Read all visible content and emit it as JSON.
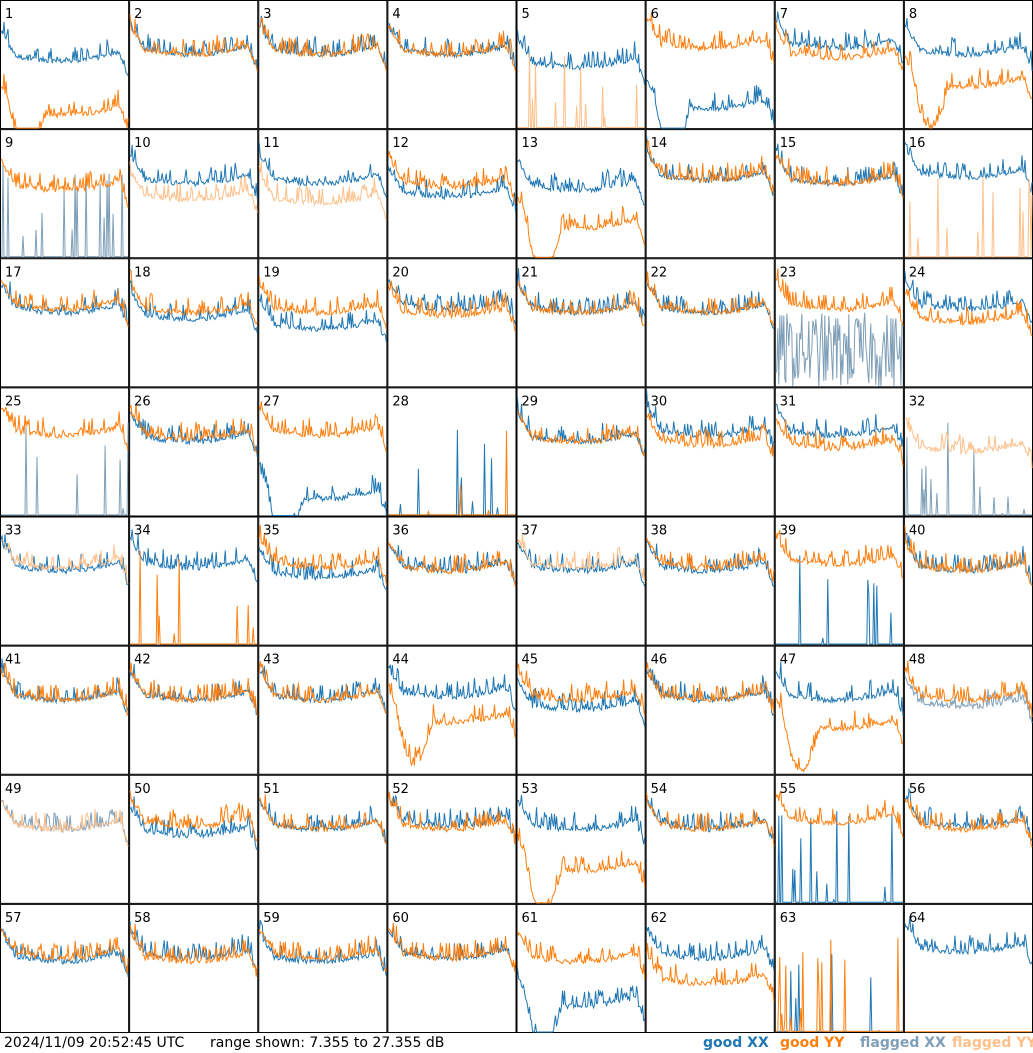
{
  "footer": {
    "timestamp": "2024/11/09 20:52:45 UTC",
    "range": "range shown: 7.355 to 27.355 dB"
  },
  "colors": {
    "good_xx": "#1f77b4",
    "good_yy": "#ff7f0e",
    "flagged_xx": "#7f9fb8",
    "flagged_yy": "#ffc08a"
  },
  "legend": [
    {
      "label": "good XX",
      "color": "#1f77b4"
    },
    {
      "label": "good YY",
      "color": "#ff7f0e"
    },
    {
      "label": "flagged XX",
      "color": "#7f9fb8"
    },
    {
      "label": "flagged YY",
      "color": "#ffc08a"
    }
  ],
  "chart_data": {
    "type": "line",
    "rows": 8,
    "cols": 8,
    "ylim": [
      7.355,
      27.355
    ],
    "yunit": "dB",
    "series_order": [
      "XX",
      "YY"
    ],
    "panels": [
      {
        "id": "1",
        "xx": {
          "level": 18.5,
          "status": "good",
          "shape": "normal"
        },
        "yy": {
          "level": 12.5,
          "status": "good",
          "shape": "dip"
        }
      },
      {
        "id": "2",
        "xx": {
          "level": 19.5,
          "status": "good",
          "shape": "normal"
        },
        "yy": {
          "level": 19.5,
          "status": "good",
          "shape": "normal"
        }
      },
      {
        "id": "3",
        "xx": {
          "level": 19.5,
          "status": "good",
          "shape": "normal"
        },
        "yy": {
          "level": 19.5,
          "status": "good",
          "shape": "normal"
        }
      },
      {
        "id": "4",
        "xx": {
          "level": 19.5,
          "status": "good",
          "shape": "normal"
        },
        "yy": {
          "level": 19.5,
          "status": "good",
          "shape": "normal"
        }
      },
      {
        "id": "5",
        "xx": {
          "level": 17.5,
          "status": "good",
          "shape": "normal"
        },
        "yy": {
          "level": 7.5,
          "status": "flagged",
          "shape": "spikes"
        }
      },
      {
        "id": "6",
        "xx": {
          "level": 13.5,
          "status": "good",
          "shape": "dip"
        },
        "yy": {
          "level": 20.5,
          "status": "good",
          "shape": "normal"
        }
      },
      {
        "id": "7",
        "xx": {
          "level": 20.5,
          "status": "good",
          "shape": "normal"
        },
        "yy": {
          "level": 19.0,
          "status": "good",
          "shape": "normal"
        }
      },
      {
        "id": "8",
        "xx": {
          "level": 19.5,
          "status": "good",
          "shape": "normal"
        },
        "yy": {
          "level": 17.0,
          "status": "good",
          "shape": "dip"
        }
      },
      {
        "id": "9",
        "xx": {
          "level": 7.5,
          "status": "flagged",
          "shape": "spikes"
        },
        "yy": {
          "level": 18.5,
          "status": "good",
          "shape": "normal"
        }
      },
      {
        "id": "10",
        "xx": {
          "level": 19.5,
          "status": "good",
          "shape": "normal"
        },
        "yy": {
          "level": 17.0,
          "status": "flagged",
          "shape": "normal"
        }
      },
      {
        "id": "11",
        "xx": {
          "level": 19.5,
          "status": "good",
          "shape": "normal"
        },
        "yy": {
          "level": 16.5,
          "status": "flagged",
          "shape": "normal"
        }
      },
      {
        "id": "12",
        "xx": {
          "level": 17.5,
          "status": "good",
          "shape": "normal"
        },
        "yy": {
          "level": 19.0,
          "status": "good",
          "shape": "normal"
        }
      },
      {
        "id": "13",
        "xx": {
          "level": 18.5,
          "status": "good",
          "shape": "normal"
        },
        "yy": {
          "level": 15.0,
          "status": "good",
          "shape": "dip"
        }
      },
      {
        "id": "14",
        "xx": {
          "level": 20.0,
          "status": "good",
          "shape": "normal"
        },
        "yy": {
          "level": 20.0,
          "status": "good",
          "shape": "normal"
        }
      },
      {
        "id": "15",
        "xx": {
          "level": 19.5,
          "status": "good",
          "shape": "normal"
        },
        "yy": {
          "level": 19.5,
          "status": "good",
          "shape": "normal"
        }
      },
      {
        "id": "16",
        "xx": {
          "level": 20.5,
          "status": "good",
          "shape": "normal"
        },
        "yy": {
          "level": 7.5,
          "status": "flagged",
          "shape": "spikes"
        }
      },
      {
        "id": "17",
        "xx": {
          "level": 19.5,
          "status": "good",
          "shape": "normal"
        },
        "yy": {
          "level": 20.0,
          "status": "good",
          "shape": "normal"
        }
      },
      {
        "id": "18",
        "xx": {
          "level": 18.5,
          "status": "good",
          "shape": "normal"
        },
        "yy": {
          "level": 19.5,
          "status": "good",
          "shape": "normal"
        }
      },
      {
        "id": "19",
        "xx": {
          "level": 17.0,
          "status": "good",
          "shape": "normal"
        },
        "yy": {
          "level": 19.5,
          "status": "good",
          "shape": "normal"
        }
      },
      {
        "id": "20",
        "xx": {
          "level": 20.0,
          "status": "good",
          "shape": "normal"
        },
        "yy": {
          "level": 19.0,
          "status": "good",
          "shape": "normal"
        }
      },
      {
        "id": "21",
        "xx": {
          "level": 19.5,
          "status": "good",
          "shape": "normal"
        },
        "yy": {
          "level": 19.5,
          "status": "good",
          "shape": "normal"
        }
      },
      {
        "id": "22",
        "xx": {
          "level": 19.5,
          "status": "good",
          "shape": "normal"
        },
        "yy": {
          "level": 19.5,
          "status": "good",
          "shape": "normal"
        }
      },
      {
        "id": "23",
        "xx": {
          "level": 13.0,
          "status": "flagged",
          "shape": "noise"
        },
        "yy": {
          "level": 20.0,
          "status": "good",
          "shape": "normal"
        }
      },
      {
        "id": "24",
        "xx": {
          "level": 20.0,
          "status": "good",
          "shape": "normal"
        },
        "yy": {
          "level": 18.0,
          "status": "good",
          "shape": "normal"
        }
      },
      {
        "id": "25",
        "xx": {
          "level": 7.5,
          "status": "flagged",
          "shape": "spikes"
        },
        "yy": {
          "level": 20.5,
          "status": "good",
          "shape": "normal"
        }
      },
      {
        "id": "26",
        "xx": {
          "level": 19.5,
          "status": "good",
          "shape": "normal"
        },
        "yy": {
          "level": 20.0,
          "status": "good",
          "shape": "normal"
        }
      },
      {
        "id": "27",
        "xx": {
          "level": 13.0,
          "status": "good",
          "shape": "dip"
        },
        "yy": {
          "level": 20.5,
          "status": "good",
          "shape": "normal"
        }
      },
      {
        "id": "28",
        "xx": {
          "level": 7.5,
          "status": "good",
          "shape": "spikes"
        },
        "yy": {
          "level": 7.5,
          "status": "good",
          "shape": "spikes"
        }
      },
      {
        "id": "29",
        "xx": {
          "level": 19.5,
          "status": "good",
          "shape": "normal"
        },
        "yy": {
          "level": 19.5,
          "status": "good",
          "shape": "normal"
        }
      },
      {
        "id": "30",
        "xx": {
          "level": 20.5,
          "status": "good",
          "shape": "normal"
        },
        "yy": {
          "level": 19.0,
          "status": "good",
          "shape": "normal"
        }
      },
      {
        "id": "31",
        "xx": {
          "level": 20.5,
          "status": "good",
          "shape": "normal"
        },
        "yy": {
          "level": 18.5,
          "status": "good",
          "shape": "normal"
        }
      },
      {
        "id": "32",
        "xx": {
          "level": 7.5,
          "status": "flagged",
          "shape": "spikes"
        },
        "yy": {
          "level": 18.0,
          "status": "flagged",
          "shape": "normal"
        }
      },
      {
        "id": "33",
        "xx": {
          "level": 19.5,
          "status": "good",
          "shape": "normal"
        },
        "yy": {
          "level": 20.0,
          "status": "flagged",
          "shape": "normal"
        }
      },
      {
        "id": "34",
        "xx": {
          "level": 20.0,
          "status": "good",
          "shape": "normal"
        },
        "yy": {
          "level": 7.5,
          "status": "good",
          "shape": "spikes"
        }
      },
      {
        "id": "35",
        "xx": {
          "level": 18.5,
          "status": "good",
          "shape": "normal"
        },
        "yy": {
          "level": 20.0,
          "status": "good",
          "shape": "normal"
        }
      },
      {
        "id": "36",
        "xx": {
          "level": 19.5,
          "status": "good",
          "shape": "normal"
        },
        "yy": {
          "level": 19.5,
          "status": "good",
          "shape": "normal"
        }
      },
      {
        "id": "37",
        "xx": {
          "level": 19.5,
          "status": "good",
          "shape": "normal"
        },
        "yy": {
          "level": 20.0,
          "status": "flagged",
          "shape": "normal"
        }
      },
      {
        "id": "38",
        "xx": {
          "level": 19.5,
          "status": "good",
          "shape": "normal"
        },
        "yy": {
          "level": 20.0,
          "status": "good",
          "shape": "normal"
        }
      },
      {
        "id": "39",
        "xx": {
          "level": 7.5,
          "status": "good",
          "shape": "spikes"
        },
        "yy": {
          "level": 20.5,
          "status": "good",
          "shape": "normal"
        }
      },
      {
        "id": "40",
        "xx": {
          "level": 19.5,
          "status": "good",
          "shape": "normal"
        },
        "yy": {
          "level": 19.5,
          "status": "good",
          "shape": "normal"
        }
      },
      {
        "id": "41",
        "xx": {
          "level": 19.5,
          "status": "good",
          "shape": "normal"
        },
        "yy": {
          "level": 19.5,
          "status": "good",
          "shape": "normal"
        }
      },
      {
        "id": "42",
        "xx": {
          "level": 19.5,
          "status": "good",
          "shape": "normal"
        },
        "yy": {
          "level": 19.5,
          "status": "good",
          "shape": "normal"
        }
      },
      {
        "id": "43",
        "xx": {
          "level": 19.5,
          "status": "good",
          "shape": "normal"
        },
        "yy": {
          "level": 19.5,
          "status": "good",
          "shape": "normal"
        }
      },
      {
        "id": "44",
        "xx": {
          "level": 20.0,
          "status": "good",
          "shape": "normal"
        },
        "yy": {
          "level": 18.5,
          "status": "good",
          "shape": "dip"
        }
      },
      {
        "id": "45",
        "xx": {
          "level": 18.0,
          "status": "good",
          "shape": "normal"
        },
        "yy": {
          "level": 19.5,
          "status": "good",
          "shape": "normal"
        }
      },
      {
        "id": "46",
        "xx": {
          "level": 19.5,
          "status": "good",
          "shape": "normal"
        },
        "yy": {
          "level": 19.5,
          "status": "good",
          "shape": "normal"
        }
      },
      {
        "id": "47",
        "xx": {
          "level": 19.5,
          "status": "good",
          "shape": "normal"
        },
        "yy": {
          "level": 17.5,
          "status": "good",
          "shape": "dip"
        }
      },
      {
        "id": "48",
        "xx": {
          "level": 18.5,
          "status": "flagged",
          "shape": "normal"
        },
        "yy": {
          "level": 19.5,
          "status": "good",
          "shape": "normal"
        }
      },
      {
        "id": "49",
        "xx": {
          "level": 19.5,
          "status": "flagged",
          "shape": "normal"
        },
        "yy": {
          "level": 19.5,
          "status": "flagged",
          "shape": "normal"
        }
      },
      {
        "id": "50",
        "xx": {
          "level": 18.5,
          "status": "good",
          "shape": "normal"
        },
        "yy": {
          "level": 20.0,
          "status": "good",
          "shape": "normal"
        }
      },
      {
        "id": "51",
        "xx": {
          "level": 19.5,
          "status": "good",
          "shape": "normal"
        },
        "yy": {
          "level": 19.5,
          "status": "good",
          "shape": "normal"
        }
      },
      {
        "id": "52",
        "xx": {
          "level": 20.0,
          "status": "good",
          "shape": "normal"
        },
        "yy": {
          "level": 19.5,
          "status": "good",
          "shape": "normal"
        }
      },
      {
        "id": "53",
        "xx": {
          "level": 19.5,
          "status": "good",
          "shape": "normal"
        },
        "yy": {
          "level": 15.5,
          "status": "good",
          "shape": "dip"
        }
      },
      {
        "id": "54",
        "xx": {
          "level": 19.5,
          "status": "good",
          "shape": "normal"
        },
        "yy": {
          "level": 19.5,
          "status": "good",
          "shape": "normal"
        }
      },
      {
        "id": "55",
        "xx": {
          "level": 7.5,
          "status": "good",
          "shape": "spikes"
        },
        "yy": {
          "level": 20.5,
          "status": "good",
          "shape": "normal"
        }
      },
      {
        "id": "56",
        "xx": {
          "level": 20.0,
          "status": "good",
          "shape": "normal"
        },
        "yy": {
          "level": 19.5,
          "status": "good",
          "shape": "normal"
        }
      },
      {
        "id": "57",
        "xx": {
          "level": 19.0,
          "status": "good",
          "shape": "normal"
        },
        "yy": {
          "level": 19.5,
          "status": "good",
          "shape": "normal"
        }
      },
      {
        "id": "58",
        "xx": {
          "level": 19.5,
          "status": "good",
          "shape": "normal"
        },
        "yy": {
          "level": 19.0,
          "status": "good",
          "shape": "normal"
        }
      },
      {
        "id": "59",
        "xx": {
          "level": 19.0,
          "status": "good",
          "shape": "normal"
        },
        "yy": {
          "level": 19.5,
          "status": "good",
          "shape": "normal"
        }
      },
      {
        "id": "60",
        "xx": {
          "level": 19.5,
          "status": "good",
          "shape": "normal"
        },
        "yy": {
          "level": 19.5,
          "status": "good",
          "shape": "normal"
        }
      },
      {
        "id": "61",
        "xx": {
          "level": 14.5,
          "status": "good",
          "shape": "dip"
        },
        "yy": {
          "level": 19.0,
          "status": "good",
          "shape": "normal"
        }
      },
      {
        "id": "62",
        "xx": {
          "level": 19.5,
          "status": "good",
          "shape": "normal"
        },
        "yy": {
          "level": 15.5,
          "status": "good",
          "shape": "normal"
        }
      },
      {
        "id": "63",
        "xx": {
          "level": 7.5,
          "status": "good",
          "shape": "spikes"
        },
        "yy": {
          "level": 7.5,
          "status": "good",
          "shape": "spikes"
        }
      },
      {
        "id": "64",
        "xx": {
          "level": 20.5,
          "status": "good",
          "shape": "normal"
        },
        "yy": {
          "level": 7.5,
          "status": "good",
          "shape": "flat"
        }
      }
    ]
  }
}
